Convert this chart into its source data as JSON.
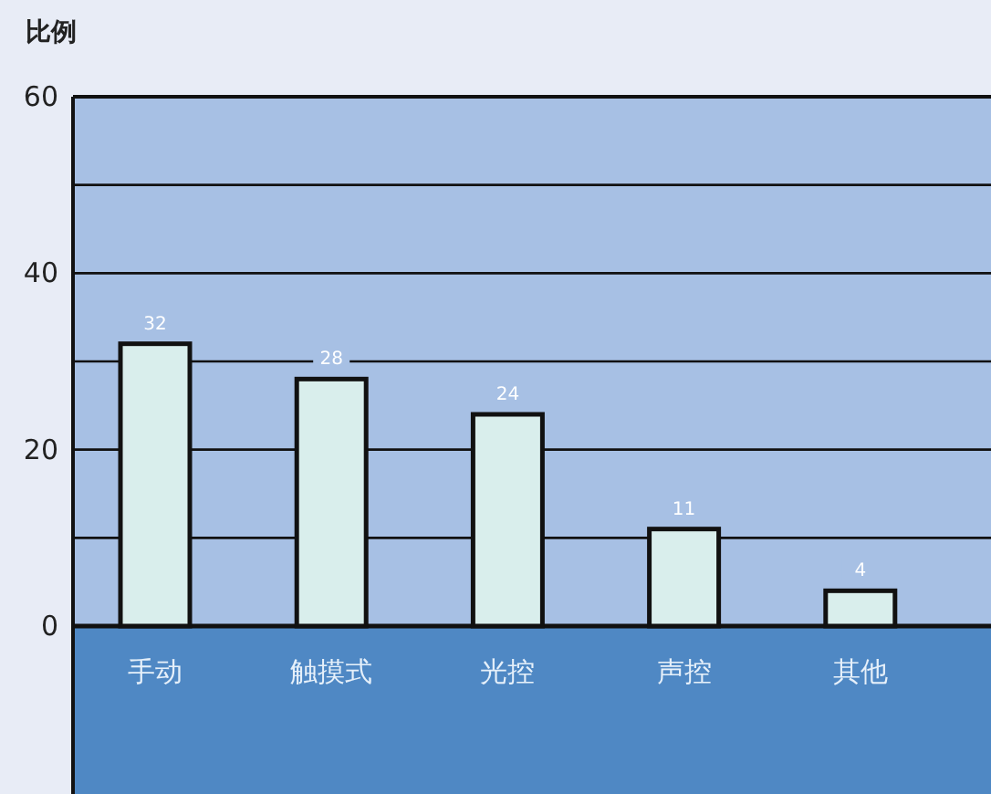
{
  "chart_data": {
    "type": "bar",
    "ylabel": "比例",
    "categories": [
      "手动",
      "触摸式",
      "光控",
      "声控",
      "其他"
    ],
    "values": [
      32,
      28,
      24,
      11,
      4
    ],
    "color": "#d9eeec",
    "ylim": [
      0,
      60
    ],
    "yticks": [
      0,
      {
        "value": 10,
        "label": null
      },
      20,
      {
        "value": 30,
        "label": null
      },
      40,
      {
        "value": 50,
        "label": null
      },
      60
    ],
    "grid": "y",
    "data_labels": true
  }
}
